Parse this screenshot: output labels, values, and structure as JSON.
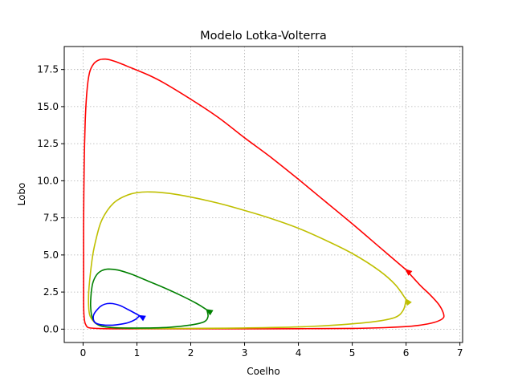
{
  "chart_data": {
    "type": "line",
    "title": "Modelo Lotka-Volterra",
    "xlabel": "Coelho",
    "ylabel": "Lobo",
    "xlim": [
      -0.35,
      7.05
    ],
    "ylim": [
      -0.9,
      19.05
    ],
    "xticks": [
      0,
      1,
      2,
      3,
      4,
      5,
      6,
      7
    ],
    "yticks": [
      0.0,
      2.5,
      5.0,
      7.5,
      10.0,
      12.5,
      15.0,
      17.5
    ],
    "ytick_labels": [
      "0.0",
      "2.5",
      "5.0",
      "7.5",
      "10.0",
      "12.5",
      "15.0",
      "17.5"
    ],
    "grid": true,
    "legend": "none",
    "series": [
      {
        "color": "#ff0000",
        "x": [
          6.0,
          5.5,
          5.0,
          4.5,
          4.0,
          3.5,
          3.0,
          2.5,
          2.0,
          1.5,
          1.2,
          0.9,
          0.7,
          0.55,
          0.42,
          0.3,
          0.2,
          0.12,
          0.07,
          0.04,
          0.02,
          0.01,
          0.01,
          0.01,
          0.015,
          0.03,
          0.05,
          0.1,
          0.3,
          0.7,
          1.2,
          2.0,
          3.0,
          4.0,
          5.0,
          5.6,
          6.1,
          6.4,
          6.6,
          6.7,
          6.68,
          6.6,
          6.45,
          6.25,
          6.0
        ],
        "y": [
          4.0,
          5.55,
          7.1,
          8.6,
          10.1,
          11.55,
          12.9,
          14.3,
          15.5,
          16.6,
          17.15,
          17.6,
          17.9,
          18.1,
          18.2,
          18.15,
          17.9,
          17.3,
          16.0,
          14.0,
          11.0,
          7.0,
          4.0,
          2.0,
          1.0,
          0.5,
          0.3,
          0.1,
          0.04,
          0.02,
          0.02,
          0.02,
          0.02,
          0.03,
          0.05,
          0.1,
          0.2,
          0.35,
          0.55,
          0.8,
          1.2,
          1.7,
          2.3,
          3.0,
          4.0
        ],
        "arrow_at": [
          6.0,
          4.0
        ]
      },
      {
        "color": "#bfbf00",
        "x": [
          6.0,
          5.8,
          5.5,
          5.0,
          4.5,
          4.0,
          3.5,
          3.0,
          2.5,
          2.0,
          1.6,
          1.25,
          1.0,
          0.8,
          0.6,
          0.45,
          0.33,
          0.25,
          0.18,
          0.12,
          0.1,
          0.12,
          0.2,
          0.3,
          0.5,
          1.0,
          1.5,
          2.0,
          3.0,
          4.0,
          4.8,
          5.4,
          5.8,
          5.95,
          6.0
        ],
        "y": [
          2.0,
          3.0,
          3.95,
          5.1,
          6.0,
          6.8,
          7.45,
          8.0,
          8.5,
          8.9,
          9.15,
          9.25,
          9.2,
          9.0,
          8.6,
          8.0,
          7.2,
          6.2,
          5.0,
          3.2,
          2.0,
          1.0,
          0.5,
          0.25,
          0.12,
          0.05,
          0.04,
          0.05,
          0.08,
          0.15,
          0.3,
          0.5,
          0.8,
          1.3,
          2.0
        ],
        "arrow_at": [
          6.0,
          2.0
        ]
      },
      {
        "color": "#008000",
        "x": [
          2.3,
          2.1,
          1.8,
          1.5,
          1.2,
          0.9,
          0.65,
          0.48,
          0.35,
          0.25,
          0.18,
          0.15,
          0.14,
          0.16,
          0.22,
          0.35,
          0.55,
          0.85,
          1.2,
          1.6,
          2.0,
          2.25,
          2.32,
          2.3
        ],
        "y": [
          1.3,
          1.75,
          2.3,
          2.8,
          3.25,
          3.7,
          3.98,
          4.05,
          3.95,
          3.65,
          3.1,
          2.4,
          1.6,
          0.9,
          0.45,
          0.2,
          0.1,
          0.07,
          0.08,
          0.12,
          0.28,
          0.5,
          0.85,
          1.3
        ],
        "arrow_at": [
          2.3,
          1.3
        ]
      },
      {
        "color": "#0000ff",
        "x": [
          1.05,
          0.95,
          0.82,
          0.68,
          0.55,
          0.45,
          0.35,
          0.27,
          0.2,
          0.19,
          0.22,
          0.3,
          0.42,
          0.55,
          0.7,
          0.85,
          0.97,
          1.05
        ],
        "y": [
          0.9,
          1.1,
          1.35,
          1.6,
          1.72,
          1.72,
          1.6,
          1.35,
          1.0,
          0.7,
          0.45,
          0.32,
          0.27,
          0.27,
          0.33,
          0.45,
          0.65,
          0.9
        ],
        "arrow_at": [
          1.05,
          0.9
        ]
      }
    ]
  }
}
